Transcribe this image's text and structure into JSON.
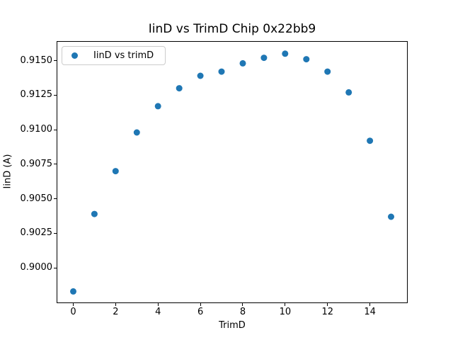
{
  "chart_data": {
    "type": "scatter",
    "title": "IinD vs TrimD Chip 0x22bb9",
    "xlabel": "TrimD",
    "ylabel": "IinD (A)",
    "legend": {
      "label": "IinD vs trimD",
      "position": "upper-left"
    },
    "marker_color": "#1f77b4",
    "x": [
      0,
      1,
      2,
      3,
      4,
      5,
      6,
      7,
      8,
      9,
      10,
      11,
      12,
      13,
      14,
      15
    ],
    "y": [
      0.8983,
      0.9039,
      0.907,
      0.9098,
      0.9117,
      0.913,
      0.9139,
      0.9142,
      0.9148,
      0.9152,
      0.9155,
      0.9151,
      0.9142,
      0.9127,
      0.9092,
      0.9037
    ],
    "xlim": [
      -0.75,
      15.75
    ],
    "ylim": [
      0.8975,
      0.91636
    ],
    "xticks": [
      0,
      2,
      4,
      6,
      8,
      10,
      12,
      14
    ],
    "ytick_labels": [
      "0.9000",
      "0.9025",
      "0.9050",
      "0.9075",
      "0.9100",
      "0.9125",
      "0.9150"
    ],
    "grid": false
  }
}
